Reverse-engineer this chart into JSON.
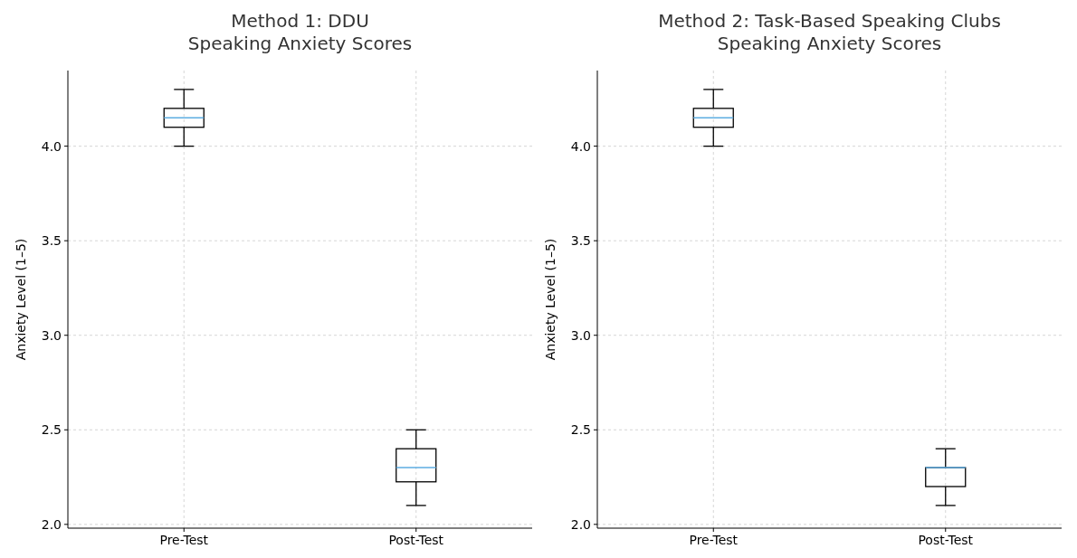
{
  "chart_data": [
    {
      "type": "box",
      "title": "Method 1: DDU\nSpeaking Anxiety Scores",
      "ylabel": "Anxiety Level (1–5)",
      "categories": [
        "Pre-Test",
        "Post-Test"
      ],
      "ylim": [
        1.98,
        4.4
      ],
      "yticks": [
        {
          "value": 2,
          "label": "2.0"
        },
        {
          "value": 2.5,
          "label": "2.5"
        },
        {
          "value": 3,
          "label": "3.0"
        },
        {
          "value": 3.5,
          "label": "3.5"
        },
        {
          "value": 4,
          "label": "4.0"
        }
      ],
      "grid": true,
      "series": [
        {
          "color": "#000000",
          "boxes": [
            {
              "low": 4.0,
              "q1": 4.1,
              "median": 4.15,
              "q3": 4.2,
              "high": 4.3
            },
            {
              "low": 2.1,
              "q1": 2.225,
              "median": 2.3,
              "q3": 2.4,
              "high": 2.5
            }
          ]
        }
      ]
    },
    {
      "type": "box",
      "title": "Method 2: Task-Based Speaking Clubs\nSpeaking Anxiety Scores",
      "ylabel": "Anxiety Level (1–5)",
      "categories": [
        "Pre-Test",
        "Post-Test"
      ],
      "ylim": [
        1.98,
        4.4
      ],
      "yticks": [
        {
          "value": 2,
          "label": "2.0"
        },
        {
          "value": 2.5,
          "label": "2.5"
        },
        {
          "value": 3,
          "label": "3.0"
        },
        {
          "value": 3.5,
          "label": "3.5"
        },
        {
          "value": 4,
          "label": "4.0"
        }
      ],
      "grid": true,
      "series": [
        {
          "color": "#000000",
          "boxes": [
            {
              "low": 4.0,
              "q1": 4.1,
              "median": 4.15,
              "q3": 4.2,
              "high": 4.3
            },
            {
              "low": 2.1,
              "q1": 2.2,
              "median": 2.3,
              "q3": 2.3,
              "high": 2.4
            }
          ]
        }
      ]
    }
  ]
}
